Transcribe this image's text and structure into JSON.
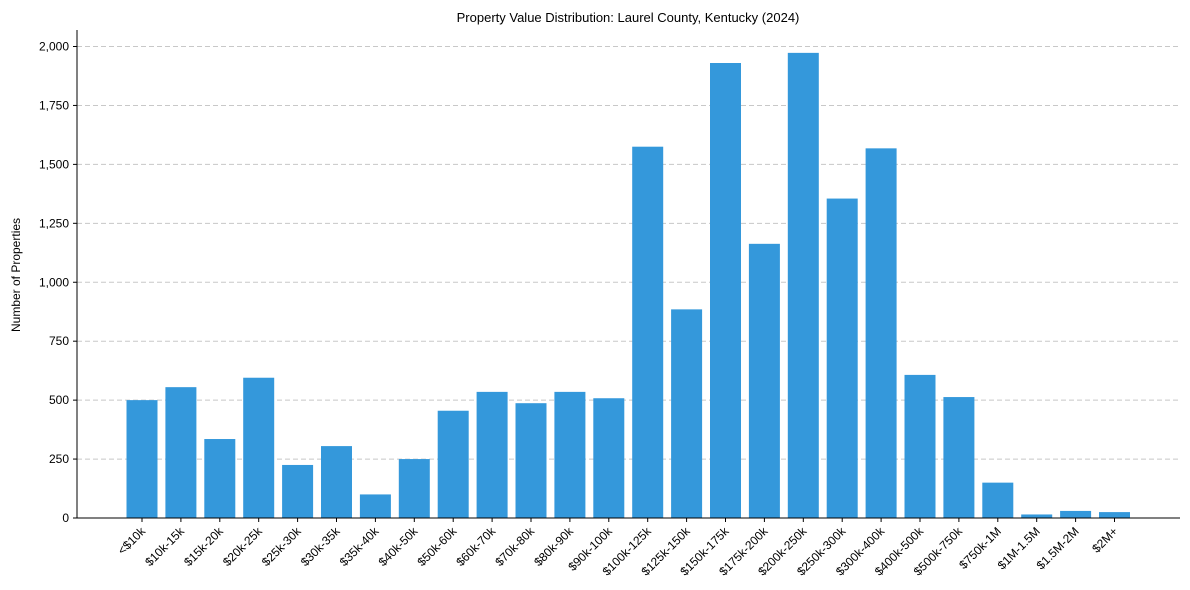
{
  "chart_data": {
    "type": "bar",
    "title": "Property Value Distribution: Laurel County, Kentucky (2024)",
    "xlabel": "",
    "ylabel": "Number of Properties",
    "ylim": [
      0,
      2070
    ],
    "yticks": [
      0,
      250,
      500,
      750,
      1000,
      1250,
      1500,
      1750,
      2000
    ],
    "ytick_labels": [
      "0",
      "250",
      "500",
      "750",
      "1,000",
      "1,250",
      "1,500",
      "1,750",
      "2,000"
    ],
    "grid": "y-dashed",
    "categories": [
      "<$10k",
      "$10k-15k",
      "$15k-20k",
      "$20k-25k",
      "$25k-30k",
      "$30k-35k",
      "$35k-40k",
      "$40k-50k",
      "$50k-60k",
      "$60k-70k",
      "$70k-80k",
      "$80k-90k",
      "$90k-100k",
      "$100k-125k",
      "$125k-150k",
      "$150k-175k",
      "$175k-200k",
      "$200k-250k",
      "$250k-300k",
      "$300k-400k",
      "$400k-500k",
      "$500k-750k",
      "$750k-1M",
      "$1M-1.5M",
      "$1.5M-2M",
      "$2M+"
    ],
    "values": [
      500,
      555,
      335,
      595,
      225,
      305,
      100,
      250,
      455,
      535,
      487,
      535,
      508,
      1575,
      885,
      1930,
      1163,
      1973,
      1355,
      1568,
      607,
      513,
      150,
      15,
      30,
      25
    ],
    "bar_color": "#3498db"
  }
}
